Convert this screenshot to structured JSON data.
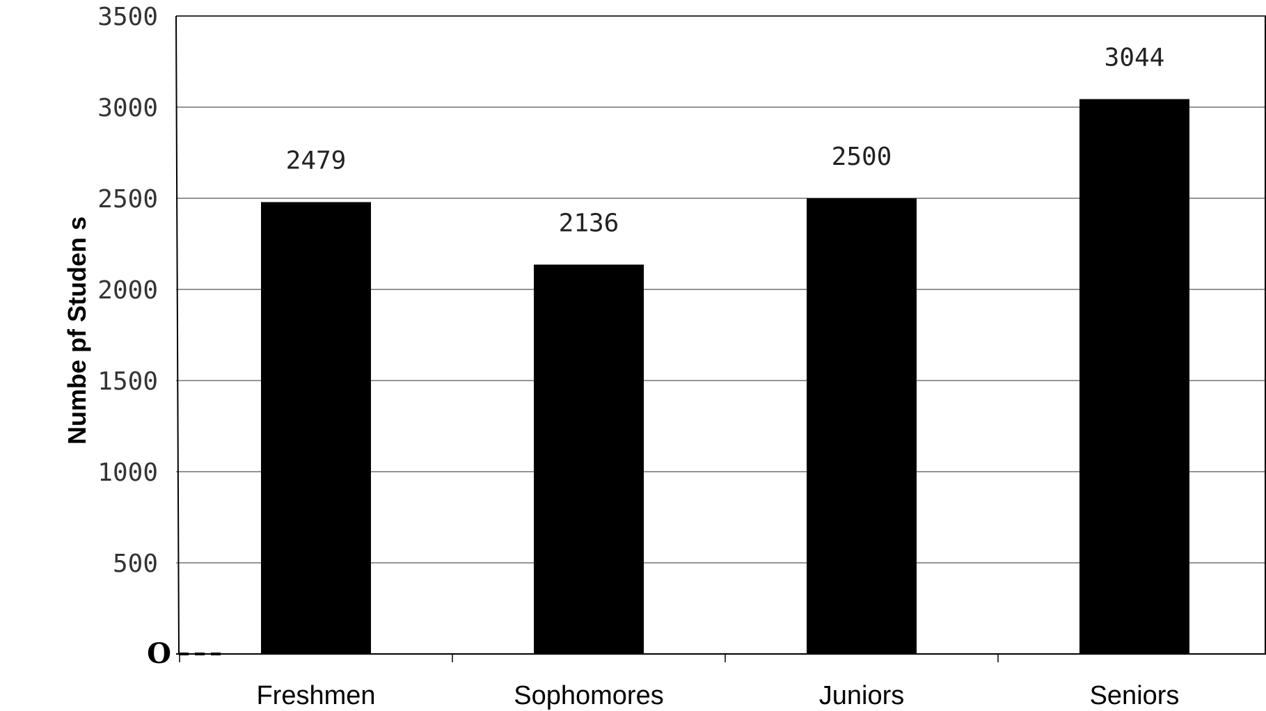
{
  "chart_data": {
    "type": "bar",
    "title": "",
    "xlabel": "",
    "ylabel": "Numbe pf Studen s",
    "categories": [
      "Freshmen",
      "Sophomores",
      "Juniors",
      "Seniors"
    ],
    "values": [
      2479,
      2136,
      2500,
      3044
    ],
    "data_labels": [
      "2479",
      "2136",
      "2500",
      "3044"
    ],
    "ylim": [
      0,
      3500
    ],
    "y_ticks": [
      0,
      500,
      1000,
      1500,
      2000,
      2500,
      3000,
      3500
    ],
    "y_tick_labels": [
      "O",
      "500",
      "1000",
      "1500",
      "2000",
      "2500",
      "3000",
      "3500"
    ],
    "grid": true,
    "legend": "none",
    "colors": {
      "bar": "#000000",
      "grid": "#555555",
      "axis": "#000000"
    }
  }
}
